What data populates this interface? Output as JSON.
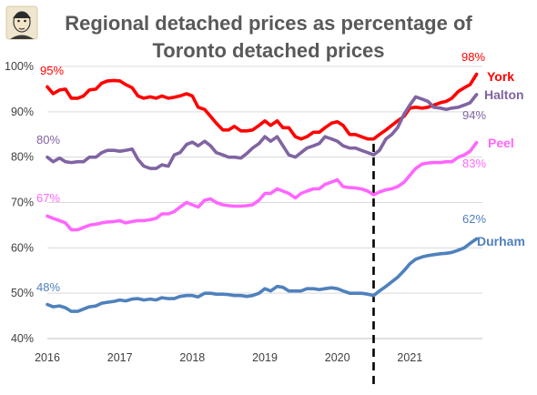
{
  "chart_data": {
    "type": "line",
    "title_lines": [
      "Regional detached prices as percentage of",
      "Toronto detached prices"
    ],
    "xlabel": "",
    "ylabel": "",
    "x_ticks": [
      "2016",
      "2017",
      "2018",
      "2019",
      "2020",
      "2021"
    ],
    "xlim": [
      2016.0,
      2022.0
    ],
    "ylim": [
      40,
      100
    ],
    "y_ticks": [
      "40%",
      "50%",
      "60%",
      "70%",
      "80%",
      "90%",
      "100%"
    ],
    "grid": "horizontal",
    "annotations": [
      {
        "type": "dashed-vertical-line",
        "x": 2020.5
      }
    ],
    "series": [
      {
        "name": "York",
        "color": "#ff0000",
        "start_label": "95%",
        "end_label": "98%",
        "points": [
          [
            2016.0,
            95.5
          ],
          [
            2016.08,
            94.0
          ],
          [
            2016.17,
            94.8
          ],
          [
            2016.25,
            95.0
          ],
          [
            2016.33,
            93.0
          ],
          [
            2016.42,
            93.0
          ],
          [
            2016.5,
            93.5
          ],
          [
            2016.58,
            94.8
          ],
          [
            2016.67,
            95.0
          ],
          [
            2016.75,
            96.3
          ],
          [
            2016.83,
            96.8
          ],
          [
            2016.92,
            96.9
          ],
          [
            2017.0,
            96.8
          ],
          [
            2017.08,
            96.0
          ],
          [
            2017.17,
            95.3
          ],
          [
            2017.25,
            93.5
          ],
          [
            2017.33,
            93.0
          ],
          [
            2017.42,
            93.3
          ],
          [
            2017.5,
            93.0
          ],
          [
            2017.58,
            93.5
          ],
          [
            2017.67,
            93.0
          ],
          [
            2017.75,
            93.2
          ],
          [
            2017.83,
            93.5
          ],
          [
            2017.92,
            94.0
          ],
          [
            2018.0,
            93.5
          ],
          [
            2018.08,
            91.0
          ],
          [
            2018.17,
            90.5
          ],
          [
            2018.25,
            89.0
          ],
          [
            2018.33,
            87.5
          ],
          [
            2018.42,
            86.0
          ],
          [
            2018.5,
            86.0
          ],
          [
            2018.58,
            86.8
          ],
          [
            2018.67,
            85.8
          ],
          [
            2018.75,
            85.8
          ],
          [
            2018.83,
            86.0
          ],
          [
            2018.92,
            87.0
          ],
          [
            2019.0,
            88.0
          ],
          [
            2019.08,
            87.0
          ],
          [
            2019.17,
            88.0
          ],
          [
            2019.25,
            86.5
          ],
          [
            2019.33,
            86.5
          ],
          [
            2019.42,
            84.5
          ],
          [
            2019.5,
            84.0
          ],
          [
            2019.58,
            84.5
          ],
          [
            2019.67,
            85.5
          ],
          [
            2019.75,
            85.5
          ],
          [
            2019.83,
            86.5
          ],
          [
            2019.92,
            87.5
          ],
          [
            2020.0,
            87.8
          ],
          [
            2020.08,
            87.0
          ],
          [
            2020.17,
            85.0
          ],
          [
            2020.25,
            85.0
          ],
          [
            2020.33,
            84.5
          ],
          [
            2020.42,
            84.0
          ],
          [
            2020.5,
            84.0
          ],
          [
            2020.58,
            85.0
          ],
          [
            2020.67,
            86.0
          ],
          [
            2020.75,
            87.0
          ],
          [
            2020.83,
            88.0
          ],
          [
            2020.92,
            89.0
          ],
          [
            2021.0,
            90.8
          ],
          [
            2021.08,
            91.0
          ],
          [
            2021.17,
            90.8
          ],
          [
            2021.25,
            91.0
          ],
          [
            2021.33,
            91.5
          ],
          [
            2021.42,
            92.0
          ],
          [
            2021.5,
            92.3
          ],
          [
            2021.58,
            93.0
          ],
          [
            2021.67,
            94.5
          ],
          [
            2021.75,
            95.3
          ],
          [
            2021.83,
            96.0
          ],
          [
            2021.92,
            98.3
          ]
        ]
      },
      {
        "name": "Halton",
        "color": "#8064a2",
        "start_label": "80%",
        "end_label": "94%",
        "points": [
          [
            2016.0,
            80.0
          ],
          [
            2016.08,
            79.0
          ],
          [
            2016.17,
            79.8
          ],
          [
            2016.25,
            79.0
          ],
          [
            2016.33,
            78.8
          ],
          [
            2016.42,
            79.0
          ],
          [
            2016.5,
            79.0
          ],
          [
            2016.58,
            80.0
          ],
          [
            2016.67,
            80.0
          ],
          [
            2016.75,
            81.0
          ],
          [
            2016.83,
            81.5
          ],
          [
            2016.92,
            81.5
          ],
          [
            2017.0,
            81.3
          ],
          [
            2017.08,
            81.5
          ],
          [
            2017.17,
            81.8
          ],
          [
            2017.25,
            79.5
          ],
          [
            2017.33,
            78.0
          ],
          [
            2017.42,
            77.5
          ],
          [
            2017.5,
            77.5
          ],
          [
            2017.58,
            78.3
          ],
          [
            2017.67,
            78.0
          ],
          [
            2017.75,
            80.5
          ],
          [
            2017.83,
            81.0
          ],
          [
            2017.92,
            82.8
          ],
          [
            2018.0,
            83.3
          ],
          [
            2018.08,
            82.5
          ],
          [
            2018.17,
            83.5
          ],
          [
            2018.25,
            82.5
          ],
          [
            2018.33,
            81.0
          ],
          [
            2018.42,
            80.5
          ],
          [
            2018.5,
            80.0
          ],
          [
            2018.58,
            80.0
          ],
          [
            2018.67,
            79.8
          ],
          [
            2018.75,
            80.8
          ],
          [
            2018.83,
            82.0
          ],
          [
            2018.92,
            83.0
          ],
          [
            2019.0,
            84.5
          ],
          [
            2019.08,
            83.5
          ],
          [
            2019.17,
            84.5
          ],
          [
            2019.25,
            82.5
          ],
          [
            2019.33,
            80.5
          ],
          [
            2019.42,
            80.0
          ],
          [
            2019.5,
            81.0
          ],
          [
            2019.58,
            82.0
          ],
          [
            2019.67,
            82.5
          ],
          [
            2019.75,
            83.0
          ],
          [
            2019.83,
            84.5
          ],
          [
            2019.92,
            84.0
          ],
          [
            2020.0,
            83.5
          ],
          [
            2020.08,
            82.5
          ],
          [
            2020.17,
            82.0
          ],
          [
            2020.25,
            82.0
          ],
          [
            2020.33,
            81.5
          ],
          [
            2020.42,
            81.0
          ],
          [
            2020.5,
            80.5
          ],
          [
            2020.58,
            81.5
          ],
          [
            2020.67,
            84.0
          ],
          [
            2020.75,
            85.0
          ],
          [
            2020.83,
            86.5
          ],
          [
            2020.92,
            89.5
          ],
          [
            2021.0,
            91.5
          ],
          [
            2021.08,
            93.3
          ],
          [
            2021.17,
            92.8
          ],
          [
            2021.25,
            92.3
          ],
          [
            2021.33,
            91.0
          ],
          [
            2021.42,
            90.8
          ],
          [
            2021.5,
            90.5
          ],
          [
            2021.58,
            90.8
          ],
          [
            2021.67,
            91.0
          ],
          [
            2021.75,
            91.5
          ],
          [
            2021.83,
            92.0
          ],
          [
            2021.92,
            93.8
          ]
        ]
      },
      {
        "name": "Peel",
        "color": "#ff66ff",
        "start_label": "67%",
        "end_label": "83%",
        "points": [
          [
            2016.0,
            67.0
          ],
          [
            2016.08,
            66.5
          ],
          [
            2016.17,
            66.0
          ],
          [
            2016.25,
            65.5
          ],
          [
            2016.33,
            64.0
          ],
          [
            2016.42,
            64.0
          ],
          [
            2016.5,
            64.5
          ],
          [
            2016.58,
            65.0
          ],
          [
            2016.67,
            65.2
          ],
          [
            2016.75,
            65.5
          ],
          [
            2016.83,
            65.7
          ],
          [
            2016.92,
            65.8
          ],
          [
            2017.0,
            66.0
          ],
          [
            2017.08,
            65.5
          ],
          [
            2017.17,
            65.8
          ],
          [
            2017.25,
            66.0
          ],
          [
            2017.33,
            66.0
          ],
          [
            2017.42,
            66.2
          ],
          [
            2017.5,
            66.5
          ],
          [
            2017.58,
            67.5
          ],
          [
            2017.67,
            67.5
          ],
          [
            2017.75,
            68.0
          ],
          [
            2017.83,
            69.0
          ],
          [
            2017.92,
            70.0
          ],
          [
            2018.0,
            69.5
          ],
          [
            2018.08,
            69.0
          ],
          [
            2018.17,
            70.5
          ],
          [
            2018.25,
            70.8
          ],
          [
            2018.33,
            70.0
          ],
          [
            2018.42,
            69.5
          ],
          [
            2018.5,
            69.3
          ],
          [
            2018.58,
            69.2
          ],
          [
            2018.67,
            69.2
          ],
          [
            2018.75,
            69.3
          ],
          [
            2018.83,
            69.5
          ],
          [
            2018.92,
            70.5
          ],
          [
            2019.0,
            72.0
          ],
          [
            2019.08,
            72.0
          ],
          [
            2019.17,
            73.0
          ],
          [
            2019.25,
            72.5
          ],
          [
            2019.33,
            72.0
          ],
          [
            2019.42,
            71.0
          ],
          [
            2019.5,
            72.0
          ],
          [
            2019.58,
            72.5
          ],
          [
            2019.67,
            73.0
          ],
          [
            2019.75,
            73.0
          ],
          [
            2019.83,
            74.0
          ],
          [
            2019.92,
            74.5
          ],
          [
            2020.0,
            75.0
          ],
          [
            2020.08,
            73.5
          ],
          [
            2020.17,
            73.3
          ],
          [
            2020.25,
            73.2
          ],
          [
            2020.33,
            73.0
          ],
          [
            2020.42,
            72.5
          ],
          [
            2020.5,
            71.7
          ],
          [
            2020.58,
            72.3
          ],
          [
            2020.67,
            72.8
          ],
          [
            2020.75,
            73.0
          ],
          [
            2020.83,
            73.5
          ],
          [
            2020.92,
            74.5
          ],
          [
            2021.0,
            76.0
          ],
          [
            2021.08,
            77.5
          ],
          [
            2021.17,
            78.5
          ],
          [
            2021.25,
            78.7
          ],
          [
            2021.33,
            78.8
          ],
          [
            2021.42,
            78.8
          ],
          [
            2021.5,
            79.0
          ],
          [
            2021.58,
            79.0
          ],
          [
            2021.67,
            80.0
          ],
          [
            2021.75,
            80.5
          ],
          [
            2021.83,
            81.3
          ],
          [
            2021.92,
            83.2
          ]
        ]
      },
      {
        "name": "Durham",
        "color": "#4f81bd",
        "start_label": "48%",
        "end_label": "62%",
        "points": [
          [
            2016.0,
            47.5
          ],
          [
            2016.08,
            47.0
          ],
          [
            2016.17,
            47.2
          ],
          [
            2016.25,
            46.8
          ],
          [
            2016.33,
            46.0
          ],
          [
            2016.42,
            46.0
          ],
          [
            2016.5,
            46.5
          ],
          [
            2016.58,
            47.0
          ],
          [
            2016.67,
            47.2
          ],
          [
            2016.75,
            47.8
          ],
          [
            2016.83,
            48.0
          ],
          [
            2016.92,
            48.2
          ],
          [
            2017.0,
            48.5
          ],
          [
            2017.08,
            48.3
          ],
          [
            2017.17,
            48.7
          ],
          [
            2017.25,
            48.8
          ],
          [
            2017.33,
            48.5
          ],
          [
            2017.42,
            48.7
          ],
          [
            2017.5,
            48.5
          ],
          [
            2017.58,
            49.0
          ],
          [
            2017.67,
            48.8
          ],
          [
            2017.75,
            48.8
          ],
          [
            2017.83,
            49.3
          ],
          [
            2017.92,
            49.5
          ],
          [
            2018.0,
            49.5
          ],
          [
            2018.08,
            49.2
          ],
          [
            2018.17,
            50.0
          ],
          [
            2018.25,
            50.0
          ],
          [
            2018.33,
            49.8
          ],
          [
            2018.42,
            49.8
          ],
          [
            2018.5,
            49.7
          ],
          [
            2018.58,
            49.5
          ],
          [
            2018.67,
            49.5
          ],
          [
            2018.75,
            49.3
          ],
          [
            2018.83,
            49.5
          ],
          [
            2018.92,
            50.0
          ],
          [
            2019.0,
            51.0
          ],
          [
            2019.08,
            50.5
          ],
          [
            2019.17,
            51.5
          ],
          [
            2019.25,
            51.3
          ],
          [
            2019.33,
            50.5
          ],
          [
            2019.42,
            50.5
          ],
          [
            2019.5,
            50.5
          ],
          [
            2019.58,
            51.0
          ],
          [
            2019.67,
            51.0
          ],
          [
            2019.75,
            50.8
          ],
          [
            2019.83,
            51.0
          ],
          [
            2019.92,
            51.2
          ],
          [
            2020.0,
            51.0
          ],
          [
            2020.08,
            50.5
          ],
          [
            2020.17,
            50.0
          ],
          [
            2020.25,
            50.0
          ],
          [
            2020.33,
            50.0
          ],
          [
            2020.42,
            49.8
          ],
          [
            2020.5,
            49.5
          ],
          [
            2020.58,
            50.5
          ],
          [
            2020.67,
            51.5
          ],
          [
            2020.75,
            52.5
          ],
          [
            2020.83,
            53.5
          ],
          [
            2020.92,
            55.0
          ],
          [
            2021.0,
            56.5
          ],
          [
            2021.08,
            57.5
          ],
          [
            2021.17,
            58.0
          ],
          [
            2021.25,
            58.3
          ],
          [
            2021.33,
            58.5
          ],
          [
            2021.42,
            58.7
          ],
          [
            2021.5,
            58.8
          ],
          [
            2021.58,
            59.0
          ],
          [
            2021.67,
            59.5
          ],
          [
            2021.75,
            60.0
          ],
          [
            2021.83,
            61.0
          ],
          [
            2021.92,
            62.0
          ]
        ]
      }
    ]
  }
}
